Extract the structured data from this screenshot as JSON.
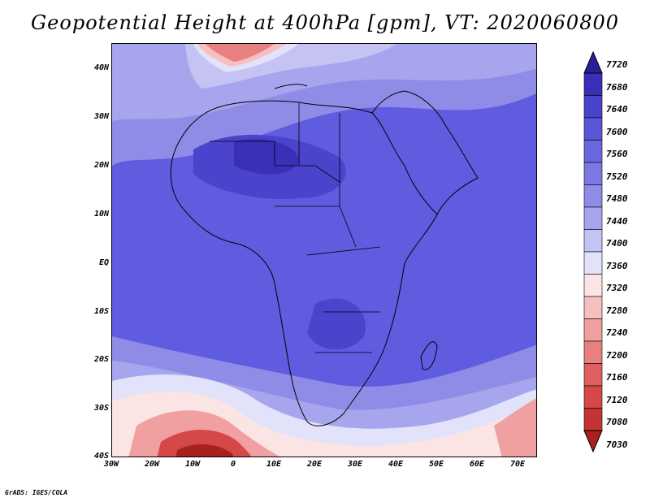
{
  "title": "Geopotential Height at 400hPa [gpm], VT: 2020060800",
  "footer": "GrADS: IGES/COLA",
  "lat_labels": [
    "40N",
    "30N",
    "20N",
    "10N",
    "EQ",
    "10S",
    "20S",
    "30S",
    "40S"
  ],
  "lon_labels": [
    "30W",
    "20W",
    "10W",
    "0",
    "10E",
    "20E",
    "30E",
    "40E",
    "50E",
    "60E",
    "70E"
  ],
  "colorbar": {
    "labels": [
      "7720",
      "7680",
      "7640",
      "7600",
      "7560",
      "7520",
      "7480",
      "7440",
      "7400",
      "7360",
      "7320",
      "7280",
      "7240",
      "7200",
      "7160",
      "7120",
      "7080",
      "7030"
    ],
    "colors": [
      "#2a1f96",
      "#3a30b8",
      "#4a44cc",
      "#5a56d8",
      "#6b67de",
      "#7c78e2",
      "#8f8ce8",
      "#a7a5ee",
      "#c4c3f4",
      "#e2e2fa",
      "#fbe4e4",
      "#f6c0c0",
      "#f0a0a0",
      "#e98080",
      "#e06060",
      "#d44848",
      "#c43434",
      "#a82020"
    ]
  }
}
